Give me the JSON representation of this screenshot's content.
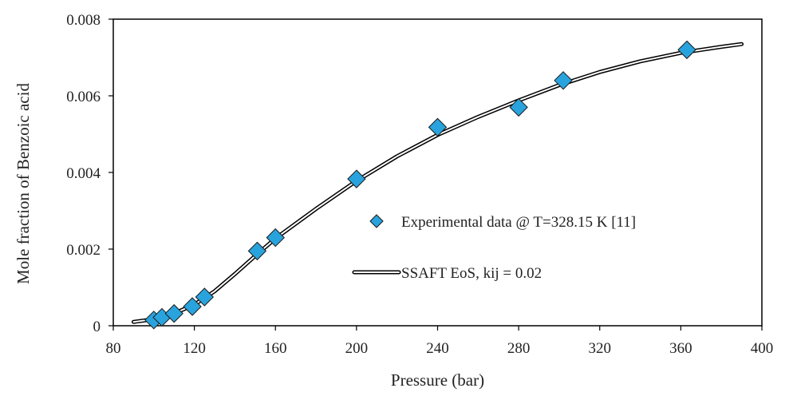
{
  "chart_data": {
    "type": "scatter",
    "title": "",
    "xlabel": "Pressure (bar)",
    "ylabel": "Mole fraction of Benzoic  acid",
    "xlim": [
      80,
      400
    ],
    "ylim": [
      0,
      0.008
    ],
    "x_ticks": [
      80,
      120,
      160,
      200,
      240,
      280,
      320,
      360,
      400
    ],
    "x_tick_labels": [
      "80",
      "120",
      "160",
      "200",
      "240",
      "280",
      "320",
      "360",
      "400"
    ],
    "y_ticks": [
      0,
      0.002,
      0.004,
      0.006,
      0.008
    ],
    "y_tick_labels": [
      "0",
      "0.002",
      "0.004",
      "0.006",
      "0.008"
    ],
    "grid": false,
    "legend_position": "center-right",
    "series": [
      {
        "name": "Experimental data @ T=328.15 K [11]",
        "kind": "markers",
        "marker": "diamond",
        "color": "#29a3dd",
        "points": [
          {
            "x": 100,
            "y": 0.00015
          },
          {
            "x": 104,
            "y": 0.00022
          },
          {
            "x": 110,
            "y": 0.00032
          },
          {
            "x": 119,
            "y": 0.0005
          },
          {
            "x": 125,
            "y": 0.00075
          },
          {
            "x": 151,
            "y": 0.00195
          },
          {
            "x": 160,
            "y": 0.0023
          },
          {
            "x": 200,
            "y": 0.00383
          },
          {
            "x": 240,
            "y": 0.00518
          },
          {
            "x": 280,
            "y": 0.0057
          },
          {
            "x": 302,
            "y": 0.0064
          },
          {
            "x": 363,
            "y": 0.0072
          }
        ]
      },
      {
        "name": "SSAFT EoS, kij = 0.02",
        "kind": "line",
        "style": "double",
        "color": "#000000",
        "points": [
          {
            "x": 90,
            "y": 0.0001
          },
          {
            "x": 100,
            "y": 0.00017
          },
          {
            "x": 110,
            "y": 0.00032
          },
          {
            "x": 120,
            "y": 0.00055
          },
          {
            "x": 130,
            "y": 0.0009
          },
          {
            "x": 140,
            "y": 0.00135
          },
          {
            "x": 150,
            "y": 0.00182
          },
          {
            "x": 160,
            "y": 0.00228
          },
          {
            "x": 180,
            "y": 0.00305
          },
          {
            "x": 200,
            "y": 0.00378
          },
          {
            "x": 220,
            "y": 0.00442
          },
          {
            "x": 240,
            "y": 0.00498
          },
          {
            "x": 260,
            "y": 0.00545
          },
          {
            "x": 280,
            "y": 0.00588
          },
          {
            "x": 300,
            "y": 0.00628
          },
          {
            "x": 320,
            "y": 0.00662
          },
          {
            "x": 340,
            "y": 0.0069
          },
          {
            "x": 360,
            "y": 0.00712
          },
          {
            "x": 380,
            "y": 0.00728
          },
          {
            "x": 390,
            "y": 0.00735
          }
        ]
      }
    ]
  }
}
